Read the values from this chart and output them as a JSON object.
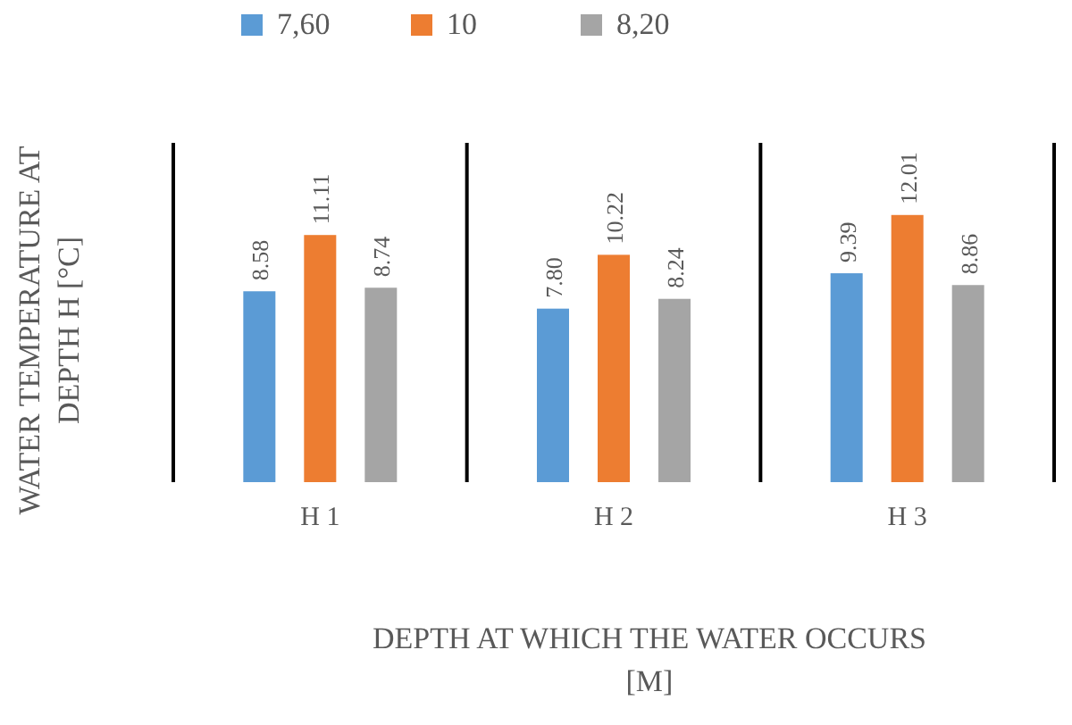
{
  "chart_data": {
    "type": "bar",
    "xlabel": "DEPTH AT WHICH THE WATER OCCURS [M]",
    "ylabel": "WATER TEMPERATURE AT DEPTH H [°C]",
    "categories": [
      "H 1",
      "H 2",
      "H 3"
    ],
    "series": [
      {
        "name": "7,60",
        "color": "#5b9bd5",
        "values": [
          8.58,
          7.8,
          9.39
        ],
        "value_labels": [
          "8.58",
          "7.80",
          "9.39"
        ]
      },
      {
        "name": "10",
        "color": "#ed7d31",
        "values": [
          11.11,
          10.22,
          12.01
        ],
        "value_labels": [
          "11.11",
          "10.22",
          "12.01"
        ]
      },
      {
        "name": "8,20",
        "color": "#a5a5a5",
        "values": [
          8.74,
          8.24,
          8.86
        ],
        "value_labels": [
          "8.74",
          "8.24",
          "8.86"
        ]
      }
    ],
    "grid": "x",
    "legend": "top",
    "tick_labels": "x"
  }
}
